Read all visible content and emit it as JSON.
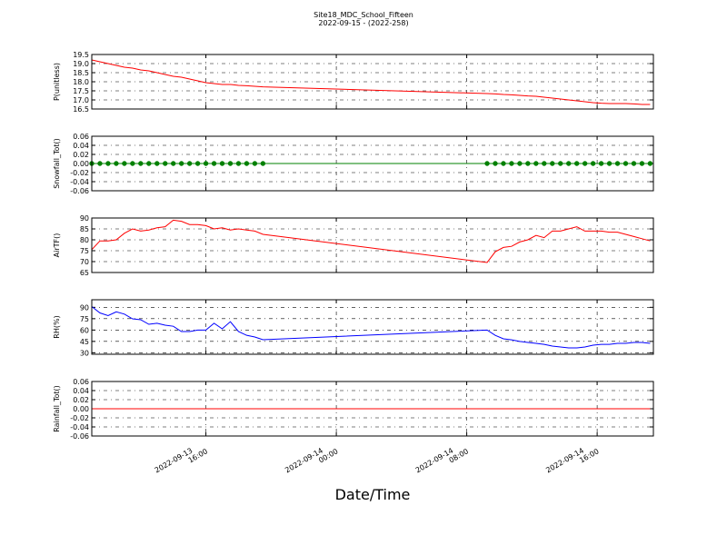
{
  "title": "Site18_MDC_School_Fifteen",
  "subtitle": "2022-09-15 - (2022-258)",
  "xlabel": "Date/Time",
  "x": [
    9,
    9.5,
    10,
    10.5,
    11,
    11.5,
    12,
    12.5,
    13,
    13.5,
    14,
    14.5,
    15,
    15.5,
    16,
    16.5,
    17,
    17.5,
    18,
    18.5,
    19,
    19.5,
    33.25,
    33.75,
    34.25,
    34.75,
    35.25,
    35.75,
    36.25,
    36.75,
    37.25,
    37.75,
    38.25,
    38.75,
    39.25,
    39.75,
    40.25,
    40.75,
    41.25,
    41.75,
    42.25,
    42.75,
    43.25
  ],
  "xlim": [
    9,
    43.45
  ],
  "xticks": [
    {
      "value": 16,
      "label": [
        "2022-09-13",
        "16:00"
      ]
    },
    {
      "value": 24,
      "label": [
        "2022-09-14",
        "00:00"
      ]
    },
    {
      "value": 32,
      "label": [
        "2022-09-14",
        "08:00"
      ]
    },
    {
      "value": 40,
      "label": [
        "2022-09-14",
        "16:00"
      ]
    }
  ],
  "chart_data": [
    {
      "type": "line",
      "ylabel": "P(unitless)",
      "color": "#ff0000",
      "grid": true,
      "ylim": [
        16.5,
        19.5
      ],
      "yticks": [
        16.5,
        {
          "value": 17,
          "label": "17.0"
        },
        17.5,
        {
          "value": 18,
          "label": "18.0"
        },
        18.5,
        {
          "value": 19,
          "label": "19.0"
        },
        19.5
      ],
      "values": [
        19.2,
        19.1,
        19.0,
        18.9,
        18.8,
        18.75,
        18.65,
        18.6,
        18.5,
        18.4,
        18.3,
        18.25,
        18.15,
        18.05,
        17.95,
        17.9,
        17.85,
        17.85,
        17.8,
        17.78,
        17.75,
        17.72,
        17.35,
        17.33,
        17.3,
        17.28,
        17.25,
        17.22,
        17.2,
        17.15,
        17.1,
        17.05,
        17.0,
        16.95,
        16.9,
        16.85,
        16.82,
        16.8,
        16.8,
        16.8,
        16.78,
        16.75,
        16.75
      ]
    },
    {
      "type": "line",
      "ylabel": "Snowfall_Tot()",
      "color": "#008000",
      "marker": "o",
      "grid": true,
      "ylim": [
        -0.06,
        0.06
      ],
      "yticks": [
        -0.06,
        -0.04,
        -0.02,
        {
          "value": 0,
          "label": "0.00"
        },
        0.02,
        0.04,
        0.06
      ],
      "values": [
        0,
        0,
        0,
        0,
        0,
        0,
        0,
        0,
        0,
        0,
        0,
        0,
        0,
        0,
        0,
        0,
        0,
        0,
        0,
        0,
        0,
        0,
        0,
        0,
        0,
        0,
        0,
        0,
        0,
        0,
        0,
        0,
        0,
        0,
        0,
        0,
        0,
        0,
        0,
        0,
        0,
        0,
        0
      ]
    },
    {
      "type": "line",
      "ylabel": "AirTF()",
      "color": "#ff0000",
      "grid": true,
      "ylim": [
        65,
        90
      ],
      "yticks": [
        65,
        70,
        75,
        80,
        85,
        90
      ],
      "values": [
        75.5,
        79.5,
        79.5,
        80,
        83,
        85,
        84,
        84.5,
        85.5,
        86,
        89,
        88.5,
        87,
        87,
        86.5,
        85,
        85.5,
        84.5,
        85,
        84.5,
        84,
        82.5,
        69.6,
        74.5,
        76.5,
        77,
        79,
        80,
        82,
        81,
        84,
        84,
        85,
        86,
        84,
        84,
        84,
        83.5,
        83.5,
        82.5,
        81.5,
        80.5,
        79.5
      ]
    },
    {
      "type": "line",
      "ylabel": "RH(%)",
      "color": "#0000ff",
      "grid": true,
      "ylim": [
        28,
        100
      ],
      "yticks": [
        30,
        45,
        60,
        75,
        90
      ],
      "values": [
        91,
        82.6,
        79,
        84,
        81,
        74.8,
        73.6,
        67.6,
        69,
        66.4,
        65,
        58,
        58,
        60,
        60,
        69,
        61.6,
        71,
        58,
        53,
        50.8,
        47.2,
        60,
        53,
        48.4,
        47,
        45,
        43.6,
        42.4,
        41,
        38.8,
        37.6,
        36.4,
        36.4,
        37.6,
        40,
        41,
        41,
        42.4,
        42.4,
        43.6,
        43.6,
        42.4
      ]
    },
    {
      "type": "line",
      "ylabel": "Rainfall_Tot()",
      "color": "#ff0000",
      "grid": true,
      "ylim": [
        -0.06,
        0.06
      ],
      "yticks": [
        -0.06,
        -0.04,
        -0.02,
        {
          "value": 0,
          "label": "0.00"
        },
        0.02,
        0.04,
        0.06
      ],
      "values": [
        0,
        0,
        0,
        0,
        0,
        0,
        0,
        0,
        0,
        0,
        0,
        0,
        0,
        0,
        0,
        0,
        0,
        0,
        0,
        0,
        0,
        0,
        0,
        0,
        0,
        0,
        0,
        0,
        0,
        0,
        0,
        0,
        0,
        0,
        0,
        0,
        0,
        0,
        0,
        0,
        0,
        0,
        0
      ]
    }
  ]
}
